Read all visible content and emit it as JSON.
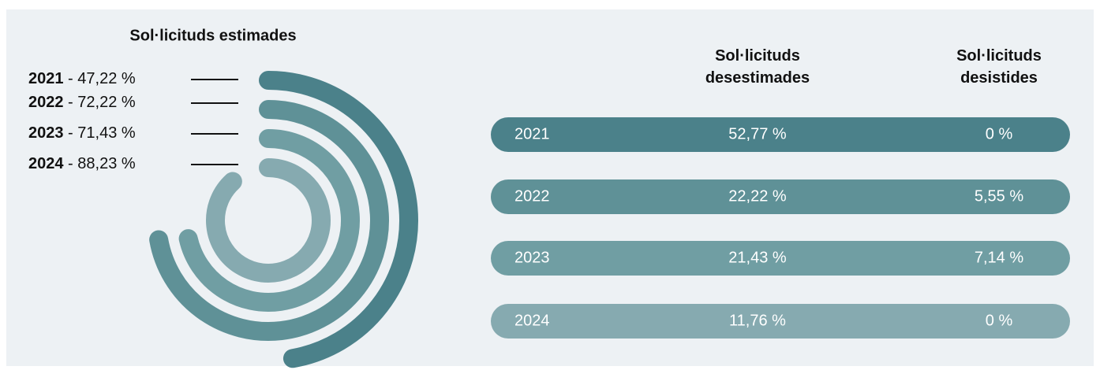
{
  "chart_data": {
    "type": "radial-bar",
    "title": "Sol·licituds estimades",
    "separator": " - ",
    "categories": [
      "2021",
      "2022",
      "2023",
      "2024"
    ],
    "values": [
      47.22,
      72.22,
      71.43,
      88.23
    ],
    "value_labels": [
      "47,22 %",
      "72,22 %",
      "71,43 %",
      "88,23 %"
    ],
    "colors": [
      "#4b818a",
      "#5f9197",
      "#709ea3",
      "#86aab0"
    ]
  },
  "table": {
    "headers": [
      "Sol·licituds desestimades",
      "Sol·licituds desistides"
    ],
    "rows": [
      [
        "2021",
        "52,77 %",
        "0 %"
      ],
      [
        "2022",
        "22,22 %",
        "5,55 %"
      ],
      [
        "2023",
        "21,43 %",
        "7,14 %"
      ],
      [
        "2024",
        "11,76 %",
        "0 %"
      ]
    ]
  }
}
